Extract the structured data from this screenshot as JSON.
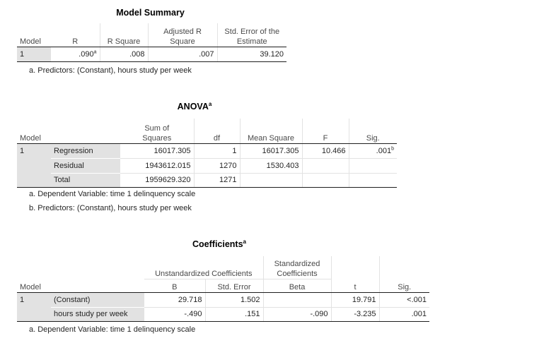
{
  "model_summary": {
    "title": "Model Summary",
    "headers": {
      "model": "Model",
      "r": "R",
      "r_square": "R Square",
      "adj_r_1": "Adjusted R",
      "adj_r_2": "Square",
      "se_1": "Std. Error of the",
      "se_2": "Estimate"
    },
    "row": {
      "model": "1",
      "r": ".090",
      "r_sup": "a",
      "r_square": ".008",
      "adj_r_square": ".007",
      "se": "39.120"
    },
    "footnotes": [
      "a. Predictors: (Constant), hours study per week"
    ]
  },
  "anova": {
    "title": "ANOVA",
    "title_sup": "a",
    "headers": {
      "model": "Model",
      "ss_1": "Sum of",
      "ss_2": "Squares",
      "df": "df",
      "ms": "Mean Square",
      "f": "F",
      "sig": "Sig."
    },
    "model": "1",
    "rows": [
      {
        "label": "Regression",
        "ss": "16017.305",
        "df": "1",
        "ms": "16017.305",
        "f": "10.466",
        "sig": ".001",
        "sig_sup": "b"
      },
      {
        "label": "Residual",
        "ss": "1943612.015",
        "df": "1270",
        "ms": "1530.403",
        "f": "",
        "sig": "",
        "sig_sup": ""
      },
      {
        "label": "Total",
        "ss": "1959629.320",
        "df": "1271",
        "ms": "",
        "f": "",
        "sig": "",
        "sig_sup": ""
      }
    ],
    "footnotes": [
      "a. Dependent Variable: time 1 delinquency scale",
      "b. Predictors: (Constant), hours study per week"
    ]
  },
  "coefficients": {
    "title": "Coefficients",
    "title_sup": "a",
    "headers": {
      "model": "Model",
      "unstd": "Unstandardized Coefficients",
      "std_1": "Standardized",
      "std_2": "Coefficients",
      "b": "B",
      "se": "Std. Error",
      "beta": "Beta",
      "t": "t",
      "sig": "Sig."
    },
    "model": "1",
    "rows": [
      {
        "label": "(Constant)",
        "b": "29.718",
        "se": "1.502",
        "beta": "",
        "t": "19.791",
        "sig": "<.001"
      },
      {
        "label": "hours study per week",
        "b": "-.490",
        "se": ".151",
        "beta": "-.090",
        "t": "-3.235",
        "sig": ".001"
      }
    ],
    "footnotes": [
      "a. Dependent Variable: time 1 delinquency scale"
    ]
  }
}
